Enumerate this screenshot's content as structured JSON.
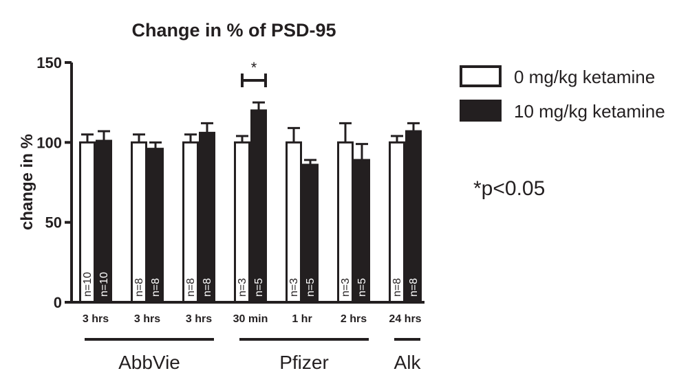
{
  "chart_data": {
    "type": "bar",
    "title": "Change in % of PSD-95",
    "xlabel": "",
    "ylabel": "change in %",
    "ylim": [
      0,
      150
    ],
    "yticks": [
      0,
      50,
      100,
      150
    ],
    "categories": [
      "3 hrs",
      "3 hrs",
      "3 hrs",
      "30 min",
      "1 hr",
      "2 hrs",
      "24 hrs"
    ],
    "groups": [
      {
        "label": "AbbVie",
        "from": 0,
        "to": 2
      },
      {
        "label": "Pfizer",
        "from": 3,
        "to": 5
      },
      {
        "label": "Alk",
        "from": 6,
        "to": 6
      }
    ],
    "series": [
      {
        "name": "0 mg/kg ketamine",
        "color": "#ffffff",
        "values": [
          100,
          100,
          100,
          100,
          100,
          100,
          100
        ],
        "errors": [
          5,
          5,
          5,
          4,
          9,
          12,
          4
        ],
        "n_labels": [
          "n=10",
          "n=8",
          "n=8",
          "n=3",
          "n=3",
          "n=3",
          "n=8"
        ]
      },
      {
        "name": "10 mg/kg ketamine",
        "color": "#231f20",
        "values": [
          101,
          96,
          106,
          120,
          86,
          89,
          107
        ],
        "errors": [
          6,
          4,
          6,
          5,
          3,
          10,
          5
        ],
        "n_labels": [
          "n=10",
          "n=8",
          "n=8",
          "n=5",
          "n=5",
          "n=5",
          "n=8"
        ]
      }
    ],
    "significance": {
      "category_index": 3,
      "label": "*"
    },
    "note": "*p<0.05",
    "legend_position": "right",
    "grid": false
  }
}
